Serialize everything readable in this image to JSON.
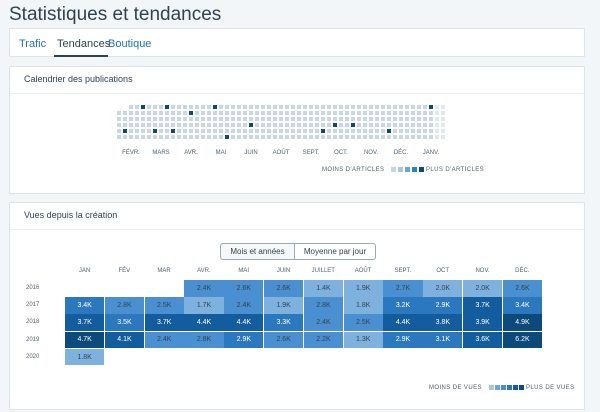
{
  "page": {
    "title": "Statistiques et tendances"
  },
  "tabs": [
    {
      "label": "Trafic"
    },
    {
      "label": "Tendances"
    },
    {
      "label": "Boutique"
    }
  ],
  "calendar": {
    "title": "Calendrier des publications",
    "months": [
      "FÉVR.",
      "MARS",
      "AVR.",
      "MAI",
      "JUIN",
      "AOÛT",
      "SEPT.",
      "OCT.",
      "NOV.",
      "DÉC.",
      "JANV."
    ],
    "legend_less": "MOINS D'ARTICLES",
    "legend_more": "PLUS D'ARTICLES",
    "scale_colors": [
      "#c8d7e1",
      "#a8c7e0",
      "#6ba5d6",
      "#2b82c8",
      "#0b4a7b"
    ]
  },
  "views": {
    "title": "Vues depuis la création",
    "toggle": [
      "Mois et années",
      "Moyenne par jour"
    ],
    "months": [
      "JAN",
      "FÉV",
      "MAR",
      "AVR.",
      "MAI",
      "JUIN",
      "JUILLET",
      "AOÛT",
      "SEPT.",
      "OCT",
      "NOV.",
      "DÉC."
    ],
    "rows": [
      {
        "year": "2016",
        "cells": [
          "",
          "",
          "",
          "2.4K",
          "2.6K",
          "2.6K",
          "1.4K",
          "1.9K",
          "2.7K",
          "2.0K",
          "2.0K",
          "2.6K"
        ]
      },
      {
        "year": "2017",
        "cells": [
          "3.4K",
          "2.8K",
          "2.5K",
          "1.7K",
          "2.4K",
          "1.9K",
          "2.8K",
          "1.8K",
          "3.2K",
          "2.9K",
          "3.7K",
          "3.4K"
        ]
      },
      {
        "year": "2018",
        "cells": [
          "3.7K",
          "3.5K",
          "3.7K",
          "4.4K",
          "4.4K",
          "3.3K",
          "2.4K",
          "2.5K",
          "4.4K",
          "3.8K",
          "3.9K",
          "4.9K"
        ]
      },
      {
        "year": "2019",
        "cells": [
          "4.7K",
          "4.1K",
          "2.4K",
          "2.8K",
          "2.9K",
          "2.6K",
          "2.2K",
          "1.3K",
          "2.9K",
          "3.1K",
          "3.6K",
          "6.2K"
        ]
      },
      {
        "year": "2020",
        "cells": [
          "1.8K",
          "",
          "",
          "",
          "",
          "",
          "",
          "",
          "",
          "",
          "",
          ""
        ]
      }
    ],
    "legend_less": "MOINS DE VUES",
    "legend_more": "PLUS DE VUES",
    "scale_colors": [
      "#a8c7e0",
      "#6ba5d6",
      "#4a90d0",
      "#2b78be",
      "#135d9e",
      "#0b4a7b"
    ]
  }
}
